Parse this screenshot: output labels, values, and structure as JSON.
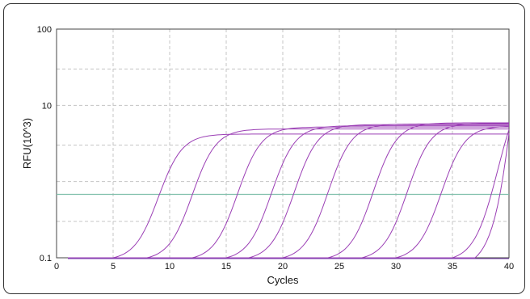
{
  "chart_data": {
    "type": "line",
    "xlabel": "Cycles",
    "ylabel": "RFU(10^3)",
    "y_scale": "log",
    "xlim": [
      0,
      40
    ],
    "ylim": [
      0.1,
      100
    ],
    "x_ticks": [
      "0",
      "5",
      "10",
      "15",
      "20",
      "25",
      "30",
      "35",
      "40"
    ],
    "y_ticks": [
      "0.1",
      "10",
      "100"
    ],
    "grid": true,
    "threshold": 0.68,
    "threshold_color": "#7fbfaa",
    "series_color": "#9b3fb5",
    "series": [
      {
        "start_cycle": 5,
        "plateau": 4.2
      },
      {
        "start_cycle": 8,
        "plateau": 4.9
      },
      {
        "start_cycle": 12,
        "plateau": 5.2
      },
      {
        "start_cycle": 15,
        "plateau": 5.4
      },
      {
        "start_cycle": 17,
        "plateau": 5.6
      },
      {
        "start_cycle": 20,
        "plateau": 5.7
      },
      {
        "start_cycle": 24,
        "plateau": 5.9
      },
      {
        "start_cycle": 27,
        "plateau": 5.8
      },
      {
        "start_cycle": 30,
        "plateau": 5.3
      },
      {
        "start_cycle": 35,
        "plateau": 4.8
      },
      {
        "start_cycle": 37,
        "plateau": 4.3
      }
    ]
  }
}
